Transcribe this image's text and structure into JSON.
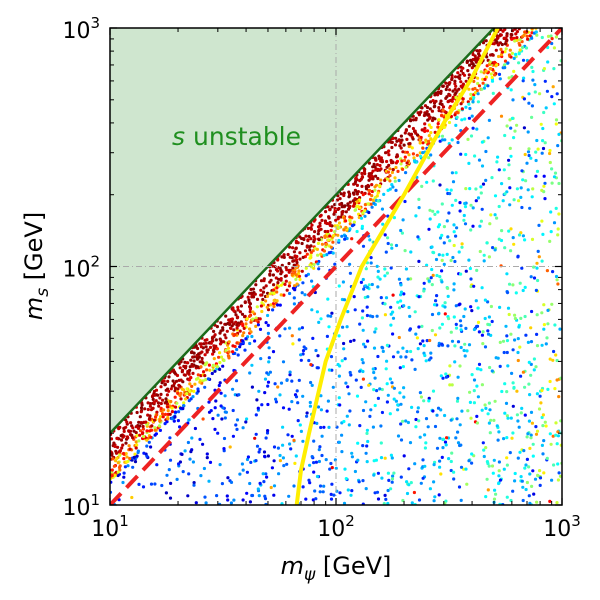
{
  "chart_data": {
    "type": "scatter",
    "xscale": "log",
    "yscale": "log",
    "xlim": [
      10,
      1000
    ],
    "ylim": [
      10,
      1000
    ],
    "xlabel": {
      "main": "m",
      "sub": "ψ",
      "unit": " [GeV]"
    },
    "ylabel": {
      "main": "m",
      "sub": "s",
      "unit": " [GeV]"
    },
    "x_ticks": [
      {
        "value": 10,
        "base": "10",
        "exp": "1"
      },
      {
        "value": 100,
        "base": "10",
        "exp": "2"
      },
      {
        "value": 1000,
        "base": "10",
        "exp": "3"
      }
    ],
    "y_ticks": [
      {
        "value": 10,
        "base": "10",
        "exp": "1"
      },
      {
        "value": 100,
        "base": "10",
        "exp": "2"
      },
      {
        "value": 1000,
        "base": "10",
        "exp": "3"
      }
    ],
    "grid": "dash-dot at decades",
    "unstable_region": {
      "label_prefix": "s",
      "label_suffix": " unstable",
      "boundary": "m_s = 2 m_psi",
      "fill_color": "#cfe6cf",
      "edge_color": "#1a6b1a",
      "label_color": "#1f8f1f"
    },
    "yellow_curve": {
      "color": "#ffee00",
      "points": [
        [
          67,
          10
        ],
        [
          70,
          14
        ],
        [
          76,
          20
        ],
        [
          90,
          40
        ],
        [
          105,
          60
        ],
        [
          130,
          100
        ],
        [
          200,
          200
        ],
        [
          300,
          400
        ],
        [
          400,
          620
        ],
        [
          520,
          1000
        ]
      ]
    },
    "red_dashed_line": {
      "color": "#ee2222",
      "points": [
        [
          10,
          10
        ],
        [
          1000,
          1000
        ]
      ]
    },
    "scatter_points": {
      "colormap": "jet",
      "note": "dense parameter scan below the stability boundary; dark red band adjacent to the boundary, blue bulk, cyan/yellow spread toward large m_psi"
    }
  }
}
